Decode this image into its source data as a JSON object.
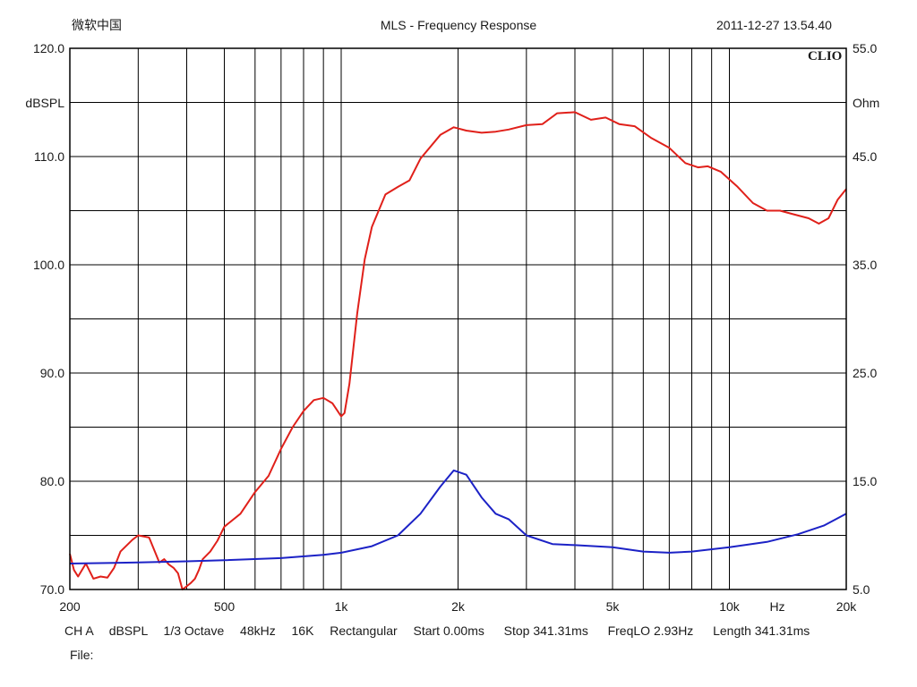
{
  "header": {
    "left": "微软中国",
    "title": "MLS - Frequency Response",
    "timestamp": "2011-12-27 13.54.40"
  },
  "brand": "CLIO",
  "footer": {
    "info": [
      "CH A",
      "dBSPL",
      "1/3 Octave",
      "48kHz",
      "16K",
      "Rectangular",
      "Start 0.00ms",
      "Stop 341.31ms",
      "FreqLO 2.93Hz",
      "Length 341.31ms"
    ],
    "file_label": "File:"
  },
  "chart_data": {
    "type": "line",
    "title": "MLS - Frequency Response",
    "x_scale": "log",
    "xlim": [
      200,
      20000
    ],
    "x_ticks": [
      {
        "v": 200,
        "label": "200"
      },
      {
        "v": 500,
        "label": "500"
      },
      {
        "v": 1000,
        "label": "1k"
      },
      {
        "v": 2000,
        "label": "2k"
      },
      {
        "v": 5000,
        "label": "5k"
      },
      {
        "v": 10000,
        "label": "10k"
      },
      {
        "v": 20000,
        "label": "20k"
      }
    ],
    "x_unit_label": "Hz",
    "y_left": {
      "label": "dBSPL",
      "ylim": [
        70,
        120
      ],
      "ticks": [
        {
          "v": 120,
          "label": "120.0"
        },
        {
          "v": 110,
          "label": "110.0"
        },
        {
          "v": 100,
          "label": "100.0"
        },
        {
          "v": 90,
          "label": "90.0"
        },
        {
          "v": 80,
          "label": "80.0"
        },
        {
          "v": 70,
          "label": "70.0"
        }
      ]
    },
    "y_right": {
      "label": "Ohm",
      "ylim": [
        5,
        55
      ],
      "ticks": [
        {
          "v": 55,
          "label": "55.0"
        },
        {
          "v": 45,
          "label": "45.0"
        },
        {
          "v": 35,
          "label": "35.0"
        },
        {
          "v": 25,
          "label": "25.0"
        },
        {
          "v": 15,
          "label": "15.0"
        },
        {
          "v": 5,
          "label": "5.0"
        }
      ]
    },
    "grid": true,
    "series": [
      {
        "color": "#e0201a",
        "axis": "left",
        "points": [
          [
            200,
            73.3
          ],
          [
            205,
            71.8
          ],
          [
            210,
            71.2
          ],
          [
            220,
            72.4
          ],
          [
            230,
            71.0
          ],
          [
            240,
            71.2
          ],
          [
            250,
            71.1
          ],
          [
            260,
            72.0
          ],
          [
            270,
            73.5
          ],
          [
            290,
            74.6
          ],
          [
            300,
            75.0
          ],
          [
            320,
            74.8
          ],
          [
            340,
            72.5
          ],
          [
            350,
            72.8
          ],
          [
            360,
            72.3
          ],
          [
            370,
            72.0
          ],
          [
            380,
            71.5
          ],
          [
            390,
            70.0
          ],
          [
            400,
            70.3
          ],
          [
            410,
            70.6
          ],
          [
            420,
            71.0
          ],
          [
            430,
            71.8
          ],
          [
            440,
            72.8
          ],
          [
            460,
            73.5
          ],
          [
            480,
            74.5
          ],
          [
            500,
            75.8
          ],
          [
            550,
            77.0
          ],
          [
            600,
            79.0
          ],
          [
            650,
            80.5
          ],
          [
            700,
            83.0
          ],
          [
            750,
            85.0
          ],
          [
            800,
            86.5
          ],
          [
            850,
            87.5
          ],
          [
            900,
            87.7
          ],
          [
            950,
            87.2
          ],
          [
            1000,
            86.0
          ],
          [
            1020,
            86.3
          ],
          [
            1050,
            89.0
          ],
          [
            1100,
            95.5
          ],
          [
            1150,
            100.5
          ],
          [
            1200,
            103.5
          ],
          [
            1300,
            106.5
          ],
          [
            1400,
            107.2
          ],
          [
            1500,
            107.8
          ],
          [
            1600,
            109.8
          ],
          [
            1800,
            112.0
          ],
          [
            1950,
            112.7
          ],
          [
            2100,
            112.4
          ],
          [
            2300,
            112.2
          ],
          [
            2500,
            112.3
          ],
          [
            2700,
            112.5
          ],
          [
            3000,
            112.9
          ],
          [
            3300,
            113.0
          ],
          [
            3600,
            114.0
          ],
          [
            4000,
            114.1
          ],
          [
            4400,
            113.4
          ],
          [
            4800,
            113.6
          ],
          [
            5200,
            113.0
          ],
          [
            5700,
            112.8
          ],
          [
            6300,
            111.7
          ],
          [
            7000,
            110.8
          ],
          [
            7700,
            109.4
          ],
          [
            8300,
            109.0
          ],
          [
            8800,
            109.1
          ],
          [
            9500,
            108.6
          ],
          [
            10500,
            107.2
          ],
          [
            11500,
            105.7
          ],
          [
            12500,
            105.0
          ],
          [
            13500,
            105.0
          ],
          [
            14500,
            104.7
          ],
          [
            16000,
            104.3
          ],
          [
            17000,
            103.8
          ],
          [
            18000,
            104.3
          ],
          [
            19000,
            106.0
          ],
          [
            20000,
            107.0
          ]
        ]
      },
      {
        "color": "#1c22c6",
        "axis": "right",
        "points": [
          [
            200,
            7.4
          ],
          [
            300,
            7.5
          ],
          [
            400,
            7.6
          ],
          [
            500,
            7.7
          ],
          [
            700,
            7.9
          ],
          [
            900,
            8.2
          ],
          [
            1000,
            8.4
          ],
          [
            1200,
            9.0
          ],
          [
            1400,
            10.0
          ],
          [
            1600,
            12.0
          ],
          [
            1800,
            14.5
          ],
          [
            1950,
            16.0
          ],
          [
            2100,
            15.6
          ],
          [
            2300,
            13.5
          ],
          [
            2500,
            12.0
          ],
          [
            2700,
            11.5
          ],
          [
            3000,
            10.0
          ],
          [
            3500,
            9.2
          ],
          [
            4000,
            9.1
          ],
          [
            5000,
            8.9
          ],
          [
            6000,
            8.5
          ],
          [
            7000,
            8.4
          ],
          [
            8000,
            8.5
          ],
          [
            10000,
            8.9
          ],
          [
            12500,
            9.4
          ],
          [
            15000,
            10.1
          ],
          [
            17500,
            10.9
          ],
          [
            20000,
            12.0
          ]
        ]
      }
    ]
  }
}
